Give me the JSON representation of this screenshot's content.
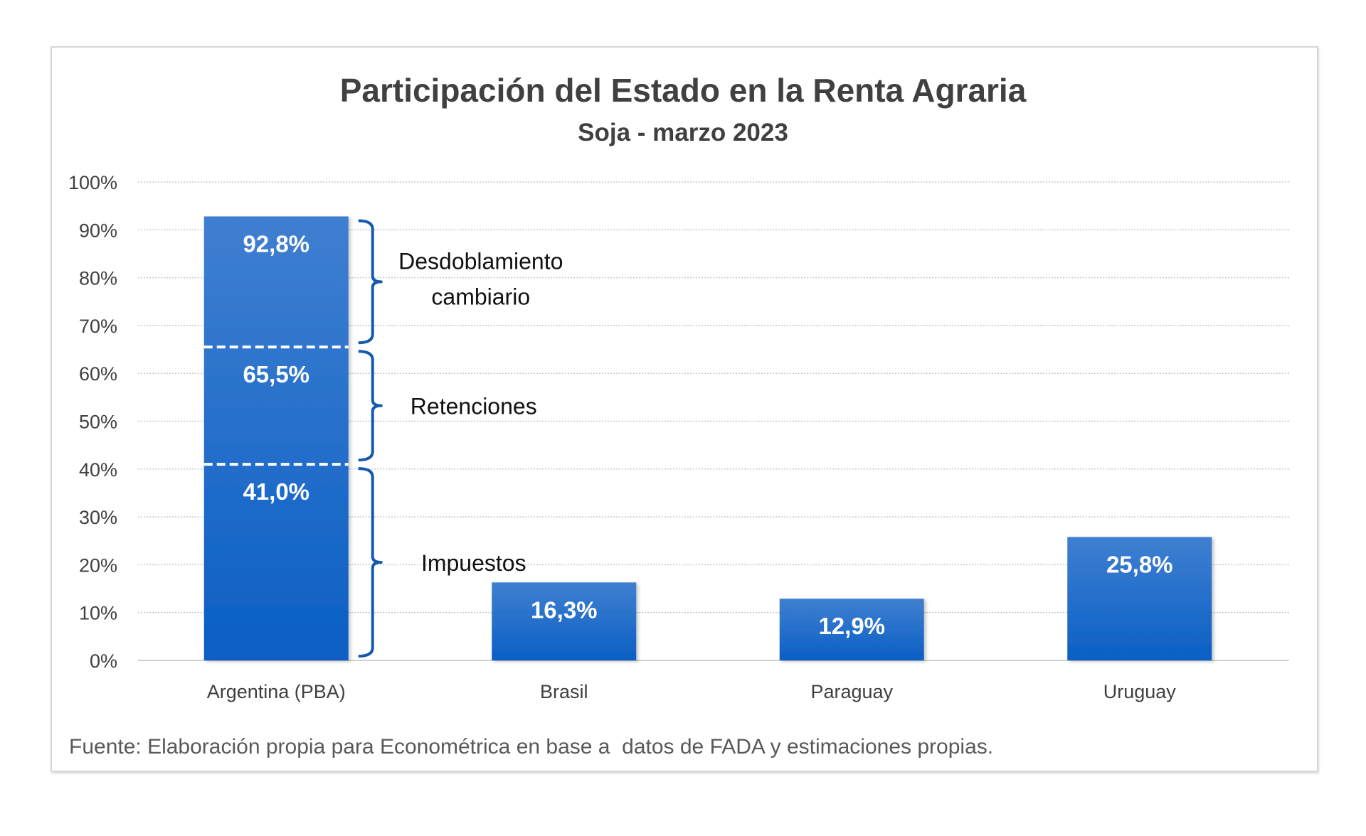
{
  "chart_data": {
    "type": "bar",
    "title": "Participación del Estado en la Renta Agraria",
    "subtitle": "Soja - marzo 2023",
    "xlabel": "",
    "ylabel": "",
    "ylim": [
      0,
      100
    ],
    "yticks": [
      0,
      10,
      20,
      30,
      40,
      50,
      60,
      70,
      80,
      90,
      100
    ],
    "ytick_labels": [
      "0%",
      "10%",
      "20%",
      "30%",
      "40%",
      "50%",
      "60%",
      "70%",
      "80%",
      "90%",
      "100%"
    ],
    "grid": true,
    "categories": [
      "Argentina (PBA)",
      "Brasil",
      "Paraguay",
      "Uruguay"
    ],
    "values": [
      92.8,
      16.3,
      12.9,
      25.8
    ],
    "value_labels": [
      "92,8%",
      "16,3%",
      "12,9%",
      "25,8%"
    ],
    "stacked_breakdown": {
      "category": "Argentina (PBA)",
      "cumulative_levels": [
        {
          "name": "Impuestos",
          "value": 41.0,
          "label": "41,0%"
        },
        {
          "name": "Retenciones",
          "value": 65.5,
          "label": "65,5%"
        },
        {
          "name": "Desdoblamiento cambiario",
          "value": 92.8,
          "label": "92,8%"
        }
      ]
    },
    "annotations": [
      {
        "text": [
          "Desdoblamiento",
          "cambiario"
        ],
        "from": 65.5,
        "to": 92.8
      },
      {
        "text": [
          "Retenciones"
        ],
        "from": 41.0,
        "to": 65.5
      },
      {
        "text": [
          "Impuestos"
        ],
        "from": 0,
        "to": 41.0
      }
    ],
    "legend": "none",
    "colors": {
      "bar_top": "#3f7fd1",
      "bar_bottom": "#0b5fc4",
      "bracket": "#1559b0",
      "title": "#404040",
      "axis_text": "#404040",
      "grid": "#c8c8c8"
    }
  },
  "footnote": "Fuente: Elaboración propia para Econométrica en base a  datos de FADA y estimaciones propias."
}
